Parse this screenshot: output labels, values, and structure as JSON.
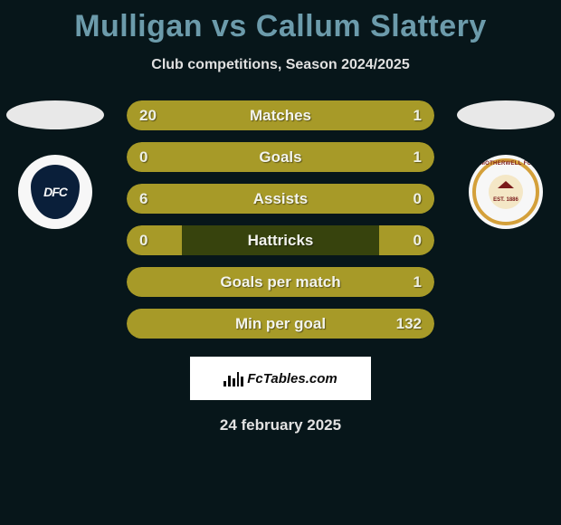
{
  "title": "Mulligan vs Callum Slattery",
  "subtitle": "Club competitions, Season 2024/2025",
  "date": "24 february 2025",
  "footer_brand": "FcTables.com",
  "colors": {
    "background": "#07161a",
    "title": "#6c9bab",
    "bar_empty": "#37430d",
    "bar_fill": "#a79a28",
    "text_light": "#eef0e5"
  },
  "left_team": {
    "name": "Dundee FC",
    "badge_text": "DFC",
    "badge_bg": "#0a1f3a",
    "badge_fg": "#f7f7f7"
  },
  "right_team": {
    "name": "Motherwell FC",
    "badge_ring": "#d4a03a",
    "badge_core": "#f4e7c6",
    "badge_text_top": "MOTHERWELL FC",
    "badge_est": "EST. 1886"
  },
  "stats": [
    {
      "label": "Matches",
      "left_val": "20",
      "right_val": "1",
      "left_pct": 95,
      "right_pct": 5
    },
    {
      "label": "Goals",
      "left_val": "0",
      "right_val": "1",
      "left_pct": 18,
      "right_pct": 82
    },
    {
      "label": "Assists",
      "left_val": "6",
      "right_val": "0",
      "left_pct": 100,
      "right_pct": 18
    },
    {
      "label": "Hattricks",
      "left_val": "0",
      "right_val": "0",
      "left_pct": 18,
      "right_pct": 18
    },
    {
      "label": "Goals per match",
      "left_val": "",
      "right_val": "1",
      "left_pct": 28,
      "right_pct": 72
    },
    {
      "label": "Min per goal",
      "left_val": "",
      "right_val": "132",
      "left_pct": 28,
      "right_pct": 97
    }
  ]
}
